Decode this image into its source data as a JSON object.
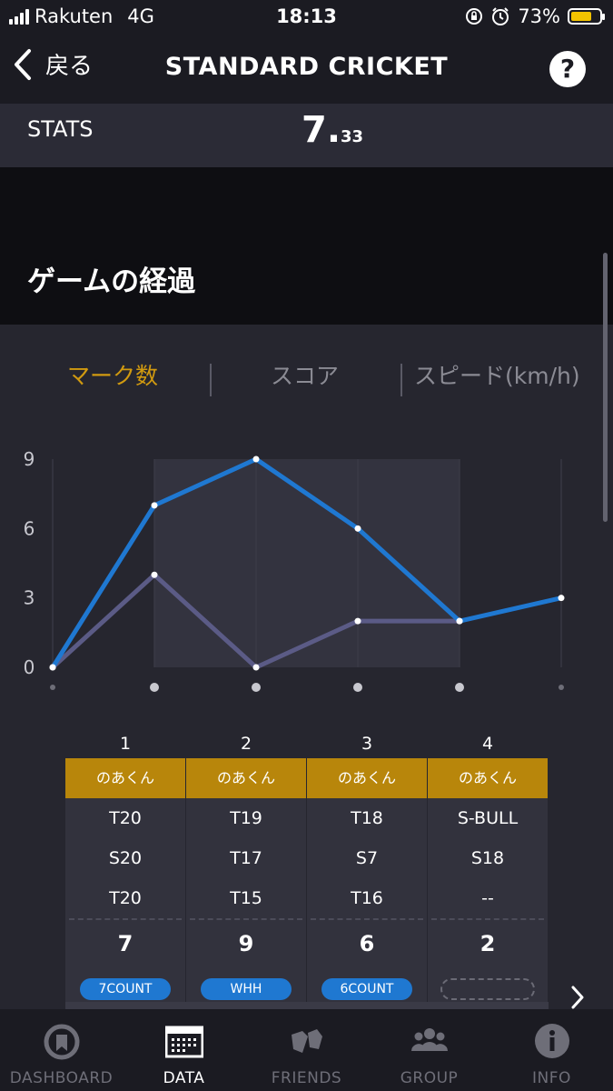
{
  "status_bar": {
    "carrier": "Rakuten",
    "network": "4G",
    "time": "18:13",
    "battery": "73%",
    "battery_level": 0.73
  },
  "nav": {
    "back_label": "戻る",
    "title": "STANDARD CRICKET",
    "help_label": "?"
  },
  "stats": {
    "label": "STATS",
    "value_int": "7.",
    "value_dec": "33"
  },
  "section": {
    "title": "ゲームの経過"
  },
  "tabs": [
    {
      "label": "マーク数",
      "active": true
    },
    {
      "label": "スコア",
      "active": false
    },
    {
      "label": "スピード(km/h)",
      "active": false
    }
  ],
  "chart_data": {
    "type": "line",
    "x": [
      0,
      1,
      2,
      3,
      4,
      5
    ],
    "ylim": [
      0,
      9
    ],
    "yticks": [
      "0",
      "3",
      "6",
      "9"
    ],
    "series": [
      {
        "values": [
          0,
          7,
          9,
          6,
          2,
          3
        ],
        "color": "#1f78d1"
      },
      {
        "values": [
          0,
          4,
          0,
          2,
          2,
          null
        ],
        "color": "#5b5b86"
      }
    ],
    "highlight_range": [
      1,
      4
    ]
  },
  "rounds": [
    {
      "number": "1",
      "player": "のあくん",
      "throws": [
        "T20",
        "S20",
        "T20"
      ],
      "total": "7",
      "award": "7COUNT"
    },
    {
      "number": "2",
      "player": "のあくん",
      "throws": [
        "T19",
        "T17",
        "T15"
      ],
      "total": "9",
      "award": "WHH"
    },
    {
      "number": "3",
      "player": "のあくん",
      "throws": [
        "T18",
        "S7",
        "T16"
      ],
      "total": "6",
      "award": "6COUNT"
    },
    {
      "number": "4",
      "player": "のあくん",
      "throws": [
        "S-BULL",
        "S18",
        "--"
      ],
      "total": "2",
      "award": ""
    }
  ],
  "tabbar": [
    {
      "label": "DASHBOARD",
      "icon": "dashboard-icon",
      "active": false
    },
    {
      "label": "DATA",
      "icon": "data-icon",
      "active": true
    },
    {
      "label": "FRIENDS",
      "icon": "friends-icon",
      "active": false
    },
    {
      "label": "GROUP",
      "icon": "group-icon",
      "active": false
    },
    {
      "label": "INFO",
      "icon": "info-icon",
      "active": false
    }
  ]
}
